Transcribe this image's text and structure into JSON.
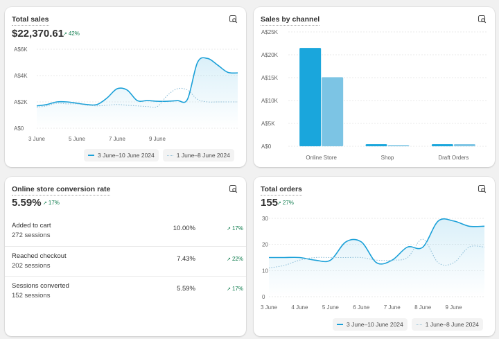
{
  "colors": {
    "primary": "#1aa0d8",
    "comparison": "#8fbfd8",
    "bar_primary": "#1aa6dc",
    "bar_comparison": "#7cc4e4",
    "positive": "#0b7a4b",
    "grid": "#e3e3e3",
    "axis_text": "#616161"
  },
  "icons": {
    "card_action": "chart-analyze-icon",
    "trend": "arrow-up-right-icon"
  },
  "total_sales": {
    "title": "Total sales",
    "value": "$22,370.61",
    "delta": "42%",
    "delta_arrow": "↗",
    "legend": [
      "3 June–10 June 2024",
      "1 June–8 June 2024"
    ],
    "chart_data": {
      "type": "line",
      "y_ticks": [
        "A$6K",
        "A$4K",
        "A$2K",
        "A$0"
      ],
      "x_ticks": [
        "3 June",
        "5 June",
        "7 June",
        "9 June"
      ],
      "ylim": [
        0,
        6000
      ],
      "series": [
        {
          "name": "3 June–10 June 2024",
          "x": [
            0,
            0.5,
            1,
            1.5,
            2,
            2.5,
            3,
            3.5,
            4,
            4.5,
            5,
            5.5,
            6,
            6.5,
            7,
            7.5,
            8,
            8.5,
            9,
            9.5,
            10
          ],
          "y": [
            1700,
            1800,
            2000,
            2000,
            1900,
            1800,
            1800,
            2300,
            3000,
            2900,
            2100,
            2100,
            2050,
            2050,
            2100,
            2200,
            5000,
            5300,
            4800,
            4250,
            4200
          ]
        },
        {
          "name": "1 June–8 June 2024",
          "x": [
            0,
            0.5,
            1,
            1.5,
            2,
            2.5,
            3,
            3.5,
            4,
            4.5,
            5,
            5.5,
            6,
            6.5,
            7,
            7.5,
            8,
            8.5,
            9,
            9.5,
            10
          ],
          "y": [
            1600,
            1700,
            1900,
            1850,
            1850,
            1750,
            1700,
            1750,
            1800,
            1750,
            1700,
            1650,
            1650,
            2500,
            3000,
            2900,
            2200,
            2000,
            2000,
            2000,
            2000
          ]
        }
      ]
    }
  },
  "sales_by_channel": {
    "title": "Sales by channel",
    "chart_data": {
      "type": "bar",
      "categories": [
        "Online Store",
        "Shop",
        "Draft Orders"
      ],
      "y_ticks": [
        "A$25K",
        "A$20K",
        "A$15K",
        "A$10K",
        "A$5K",
        "A$0"
      ],
      "ylim": [
        0,
        25000
      ],
      "series": [
        {
          "name": "3 June–10 June 2024",
          "values": [
            21500,
            450,
            450
          ]
        },
        {
          "name": "1 June–8 June 2024",
          "values": [
            15100,
            250,
            450
          ]
        }
      ]
    }
  },
  "conversion": {
    "title": "Online store conversion rate",
    "value": "5.59%",
    "delta": "17%",
    "delta_arrow": "↗",
    "rows": [
      {
        "label": "Added to cart",
        "sessions": "272 sessions",
        "rate": "10.00%",
        "change": "17%"
      },
      {
        "label": "Reached checkout",
        "sessions": "202 sessions",
        "rate": "7.43%",
        "change": "22%"
      },
      {
        "label": "Sessions converted",
        "sessions": "152 sessions",
        "rate": "5.59%",
        "change": "17%"
      }
    ]
  },
  "total_orders": {
    "title": "Total orders",
    "value": "155",
    "delta": "27%",
    "delta_arrow": "↗",
    "legend": [
      "3 June–10 June 2024",
      "1 June–8 June 2024"
    ],
    "chart_data": {
      "type": "line",
      "y_ticks": [
        "30",
        "20",
        "10",
        "0"
      ],
      "x_ticks": [
        "3 June",
        "4 June",
        "5 June",
        "6 June",
        "7 June",
        "8 June",
        "9 June"
      ],
      "ylim": [
        0,
        30
      ],
      "series": [
        {
          "name": "3 June–10 June 2024",
          "x": [
            0,
            0.5,
            1,
            1.5,
            2,
            2.5,
            3,
            3.5,
            4,
            4.5,
            5,
            5.5,
            6,
            6.5,
            7
          ],
          "y": [
            15,
            15,
            15,
            14,
            14,
            21,
            21,
            13,
            14,
            19,
            19,
            29,
            29,
            27,
            27
          ]
        },
        {
          "name": "1 June–8 June 2024",
          "x": [
            0,
            0.5,
            1,
            1.5,
            2,
            2.5,
            3,
            3.5,
            4,
            4.5,
            5,
            5.5,
            6,
            6.5,
            7
          ],
          "y": [
            11,
            12,
            14,
            15,
            15,
            15,
            15,
            14,
            14,
            15,
            22,
            13,
            13,
            19,
            19
          ]
        }
      ]
    }
  }
}
